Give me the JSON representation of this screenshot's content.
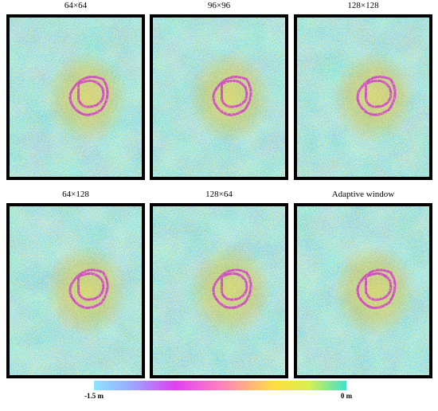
{
  "panels": [
    {
      "title": "64×64"
    },
    {
      "title": "96×96"
    },
    {
      "title": "128×128"
    },
    {
      "title": "64×128"
    },
    {
      "title": "128×64"
    },
    {
      "title": "Adaptive window"
    }
  ],
  "colorbar": {
    "min_label": "-1.5 m",
    "max_label": "0 m"
  }
}
